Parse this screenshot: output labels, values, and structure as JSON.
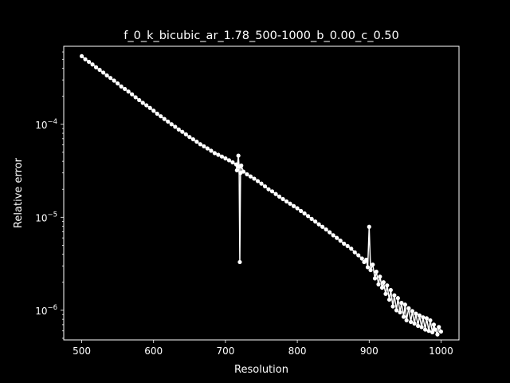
{
  "chart_data": {
    "type": "line",
    "title": "f_0_k_bicubic_ar_1.78_500-1000_b_0.00_c_0.50",
    "xlabel": "Resolution",
    "ylabel": "Relative error",
    "yscale": "log",
    "xlim": [
      475,
      1025
    ],
    "ylim": [
      4.8e-07,
      0.00069
    ],
    "grid": false,
    "line_color": "#ffffff",
    "marker": "circle",
    "x_ticks": [
      {
        "value": 500,
        "label": "500"
      },
      {
        "value": 600,
        "label": "600"
      },
      {
        "value": 700,
        "label": "700"
      },
      {
        "value": 800,
        "label": "800"
      },
      {
        "value": 900,
        "label": "900"
      },
      {
        "value": 1000,
        "label": "1000"
      }
    ],
    "y_ticks": [
      {
        "value": 0.0001,
        "base": "10",
        "exp": "−4"
      },
      {
        "value": 1e-05,
        "base": "10",
        "exp": "−5"
      },
      {
        "value": 1e-06,
        "base": "10",
        "exp": "−6"
      }
    ],
    "series": [
      {
        "x": [
          500,
          505,
          510,
          515,
          520,
          525,
          530,
          535,
          540,
          545,
          550,
          555,
          560,
          565,
          570,
          575,
          580,
          585,
          590,
          595,
          600,
          605,
          610,
          615,
          620,
          625,
          630,
          635,
          640,
          645,
          650,
          655,
          660,
          665,
          670,
          675,
          680,
          685,
          690,
          695,
          700,
          705,
          710,
          715,
          716,
          718,
          719,
          720,
          721,
          722,
          725,
          730,
          735,
          740,
          745,
          750,
          755,
          760,
          765,
          770,
          775,
          780,
          785,
          790,
          795,
          800,
          805,
          810,
          815,
          820,
          825,
          830,
          835,
          840,
          845,
          850,
          855,
          860,
          865,
          870,
          875,
          880,
          885,
          890,
          893,
          896,
          898,
          900,
          902,
          905,
          908,
          910,
          913,
          915,
          918,
          920,
          923,
          925,
          928,
          930,
          933,
          935,
          938,
          940,
          943,
          945,
          948,
          950,
          952,
          955,
          958,
          960,
          963,
          965,
          968,
          970,
          973,
          975,
          978,
          980,
          983,
          985,
          988,
          990,
          992,
          995,
          997,
          1000
        ],
        "y": [
          0.00054,
          0.0005,
          0.00047,
          0.00044,
          0.00041,
          0.000385,
          0.00036,
          0.000335,
          0.000315,
          0.000295,
          0.000275,
          0.000255,
          0.00024,
          0.000225,
          0.00021,
          0.000195,
          0.000182,
          0.00017,
          0.00016,
          0.00015,
          0.00014,
          0.00013,
          0.000122,
          0.000114,
          0.000107,
          0.0001,
          9.4e-05,
          8.8e-05,
          8.3e-05,
          7.8e-05,
          7.3e-05,
          6.9e-05,
          6.5e-05,
          6.1e-05,
          5.8e-05,
          5.5e-05,
          5.2e-05,
          4.9e-05,
          4.7e-05,
          4.5e-05,
          4.3e-05,
          4.1e-05,
          3.9e-05,
          3.7e-05,
          3.2e-05,
          4.6e-05,
          3.5e-05,
          3.3e-06,
          3e-05,
          3.6e-05,
          3.1e-05,
          2.9e-05,
          2.75e-05,
          2.6e-05,
          2.45e-05,
          2.3e-05,
          2.15e-05,
          2e-05,
          1.9e-05,
          1.78e-05,
          1.67e-05,
          1.57e-05,
          1.48e-05,
          1.4e-05,
          1.32e-05,
          1.25e-05,
          1.17e-05,
          1.1e-05,
          1.03e-05,
          9.6e-06,
          9e-06,
          8.4e-06,
          7.9e-06,
          7.4e-06,
          6.9e-06,
          6.4e-06,
          6e-06,
          5.6e-06,
          5.2e-06,
          4.9e-06,
          4.6e-06,
          4.2e-06,
          3.9e-06,
          3.6e-06,
          3.3e-06,
          3.5e-06,
          2.9e-06,
          7.9e-06,
          2.7e-06,
          3.1e-06,
          2.2e-06,
          2.6e-06,
          1.9e-06,
          2.3e-06,
          1.75e-06,
          2e-06,
          1.5e-06,
          1.85e-06,
          1.3e-06,
          1.65e-06,
          1.1e-06,
          1.45e-06,
          1e-06,
          1.35e-06,
          9.5e-07,
          1.2e-06,
          8.5e-07,
          1.15e-06,
          7.8e-07,
          1.05e-06,
          7.5e-07,
          9.8e-07,
          7.2e-07,
          9.2e-07,
          6.8e-07,
          8.8e-07,
          6.6e-07,
          8.4e-07,
          6.2e-07,
          8.2e-07,
          6e-07,
          7.8e-07,
          5.8e-07,
          7e-07,
          6.2e-07,
          5.5e-07,
          6.6e-07,
          5.9e-07
        ]
      }
    ]
  }
}
